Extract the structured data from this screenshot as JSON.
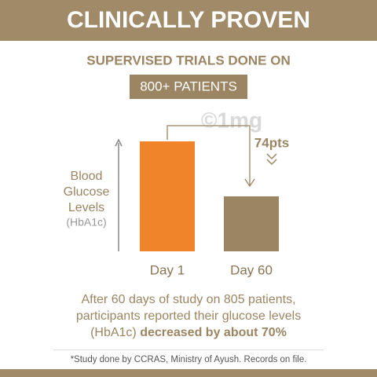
{
  "chart_data": {
    "type": "bar",
    "title": "CLINICALLY PROVEN",
    "subtitle": "SUPERVISED TRIALS DONE ON",
    "highlight": "800+ PATIENTS",
    "watermark": "©1mg",
    "y_label": [
      "Blood",
      "Glucose",
      "Levels"
    ],
    "y_label_unit": "(HbA1c)",
    "categories": [
      "Day 1",
      "Day 60"
    ],
    "values": [
      140,
      70
    ],
    "colors": [
      "#f0842a",
      "#9c8562"
    ],
    "annotation": "74pts",
    "caption": [
      "After 60 days of study on 805 patients,",
      "participants reported their glucose levels"
    ],
    "caption_last": [
      "(HbA1c) ",
      "decreased by about 70%"
    ],
    "footnote": "*Study done by CCRAS, Ministry of Ayush. Records on file."
  }
}
